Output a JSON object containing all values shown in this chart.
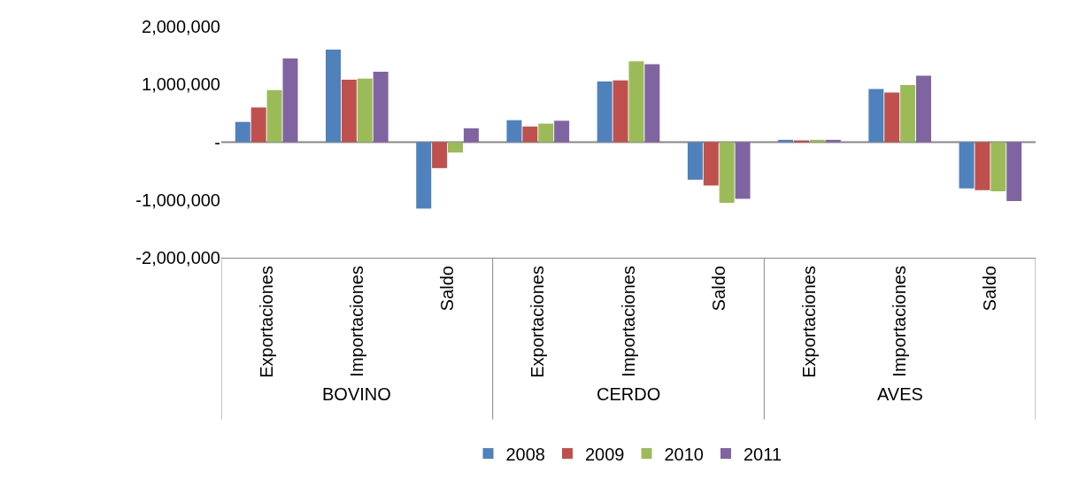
{
  "chart_data": {
    "type": "bar",
    "categories": [
      "Exportaciones",
      "Importaciones",
      "Saldo",
      "Exportaciones",
      "Importaciones",
      "Saldo",
      "Exportaciones",
      "Importaciones",
      "Saldo"
    ],
    "series": [
      {
        "name": "2008",
        "color": "#4f81bd",
        "values": [
          350000,
          1600000,
          -1150000,
          380000,
          1050000,
          -650000,
          40000,
          920000,
          -800000
        ]
      },
      {
        "name": "2009",
        "color": "#c0504d",
        "values": [
          600000,
          1080000,
          -450000,
          270000,
          1070000,
          -750000,
          30000,
          860000,
          -830000
        ]
      },
      {
        "name": "2010",
        "color": "#9bbb59",
        "values": [
          900000,
          1100000,
          -180000,
          320000,
          1400000,
          -1050000,
          40000,
          990000,
          -850000
        ]
      },
      {
        "name": "2011",
        "color": "#8064a2",
        "values": [
          1450000,
          1220000,
          240000,
          370000,
          1350000,
          -980000,
          40000,
          1150000,
          -1020000
        ]
      }
    ],
    "annotations": [
      "BOVINO",
      "CERDO",
      "AVES"
    ],
    "ylim": [
      -2000000,
      2000000
    ],
    "yticks": [
      {
        "value": 2000000,
        "label": "2,000,000"
      },
      {
        "value": 1000000,
        "label": "1,000,000"
      },
      {
        "value": 0,
        "label": "-"
      },
      {
        "value": -1000000,
        "label": "-1,000,000"
      },
      {
        "value": -2000000,
        "label": "-2,000,000"
      }
    ],
    "ref_lines": [
      {
        "axis": "y",
        "value": 0,
        "color": "#888888"
      }
    ],
    "grid": false,
    "legend": "bottom"
  }
}
